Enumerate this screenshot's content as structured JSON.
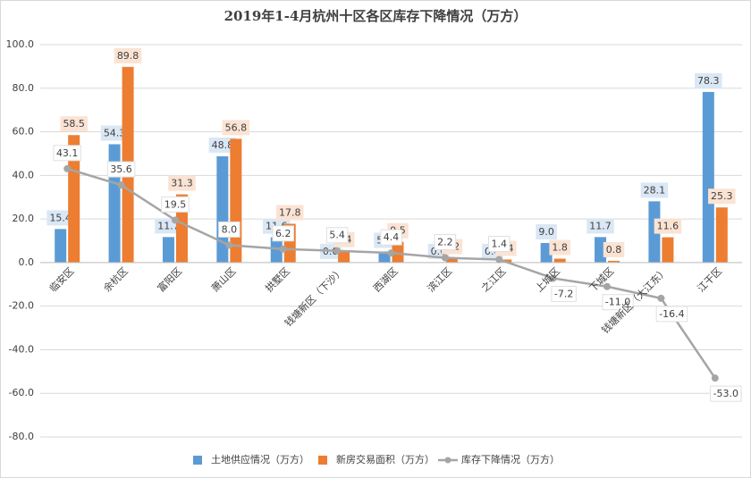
{
  "chart_data": {
    "type": "bar_line",
    "title": "2019年1-4月杭州十区各区库存下降情况（万方）",
    "categories": [
      "临安区",
      "余杭区",
      "富阳区",
      "萧山区",
      "拱墅区",
      "钱塘新区（下沙）",
      "西湖区",
      "滨江区",
      "之江区",
      "上城区",
      "下城区",
      "钱塘新区（大江东）",
      "江干区"
    ],
    "series": [
      {
        "name": "土地供应情况（万方）",
        "color": "#5b9bd5",
        "kind": "bar",
        "values": [
          15.4,
          54.3,
          11.7,
          48.8,
          11.6,
          0,
          5.1,
          0,
          0,
          9,
          11.7,
          28.1,
          78.3
        ],
        "value_labels": [
          "15.4",
          "54.3",
          "11.7",
          "48.8",
          "11.6",
          "0.0",
          "5.1",
          "0.0",
          "0.0",
          "9.0",
          "11.7",
          "28.1",
          "78.3"
        ]
      },
      {
        "name": "新房交易面积（万方）",
        "color": "#ed7d31",
        "kind": "bar",
        "values": [
          58.5,
          89.8,
          31.3,
          56.8,
          17.8,
          5.4,
          9.5,
          2.2,
          1.4,
          1.8,
          0.8,
          11.6,
          25.3
        ],
        "value_labels": [
          "58.5",
          "89.8",
          "31.3",
          "56.8",
          "17.8",
          "5.4",
          "9.5",
          "2.2",
          "1.4",
          "1.8",
          "0.8",
          "11.6",
          "25.3"
        ]
      },
      {
        "name": "库存下降情况（万方）",
        "color": "#a5a5a5",
        "kind": "line",
        "values": [
          43.1,
          35.6,
          19.5,
          8,
          6.2,
          5.4,
          4.4,
          2.2,
          1.4,
          -7.2,
          -11,
          -16.4,
          -53
        ],
        "value_labels": [
          "43.1",
          "35.6",
          "19.5",
          "8.0",
          "6.2",
          "5.4",
          "4.4",
          "2.2",
          "1.4",
          "-7.2",
          "-11.0",
          "-16.4",
          "-53.0"
        ]
      }
    ],
    "ylim": [
      -80,
      100
    ],
    "yticks": [
      {
        "value": -80,
        "label": "-80.0"
      },
      {
        "value": -60,
        "label": "-60.0"
      },
      {
        "value": -40,
        "label": "-40.0"
      },
      {
        "value": -20,
        "label": "-20.0"
      },
      {
        "value": 0,
        "label": "0.0"
      },
      {
        "value": 20,
        "label": "20.0"
      },
      {
        "value": 40,
        "label": "40.0"
      },
      {
        "value": 60,
        "label": "60.0"
      },
      {
        "value": 80,
        "label": "80.0"
      },
      {
        "value": 100,
        "label": "100.0"
      }
    ],
    "grid": true,
    "legend": "bottom"
  }
}
